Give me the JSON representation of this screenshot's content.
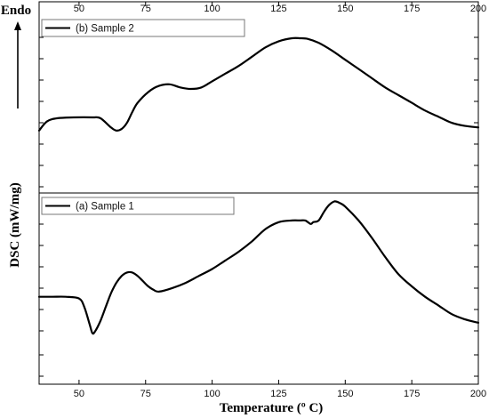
{
  "chart_data": {
    "type": "line",
    "xlabel": "Temperature (º C)",
    "ylabel": "DSC (mW/mg)",
    "endo_label": "Endo",
    "xlim": [
      35,
      200
    ],
    "x_ticks": [
      50,
      75,
      100,
      125,
      150,
      175,
      200
    ],
    "panels": [
      {
        "id": "b",
        "legend": "(b) Sample 2",
        "ylim": [
          0,
          100
        ],
        "series": [
          {
            "x": [
              35,
              38,
              42,
              48,
              55,
              58,
              62,
              64,
              66,
              68,
              70,
              72,
              76,
              80,
              84,
              88,
              92,
              96,
              100,
              105,
              110,
              115,
              120,
              125,
              130,
              133,
              136,
              140,
              145,
              150,
              155,
              160,
              165,
              170,
              175,
              180,
              185,
              190,
              195,
              200
            ],
            "y": [
              25,
              31,
              33,
              33.5,
              33.5,
              33,
              27,
              25,
              26,
              30,
              37,
              43,
              50,
              54,
              55,
              53,
              52,
              53,
              57,
              62,
              67,
              73,
              79,
              83,
              85,
              85,
              84.5,
              82,
              77,
              71,
              65,
              59,
              53,
              48,
              43,
              38,
              34,
              30,
              28,
              27
            ]
          }
        ]
      },
      {
        "id": "a",
        "legend": "(a) Sample 1",
        "ylim": [
          0,
          100
        ],
        "series": [
          {
            "x": [
              35,
              40,
              45,
              50,
              52,
              54,
              55,
              56,
              58,
              60,
              62,
              64,
              66,
              68,
              70,
              72,
              74,
              76,
              78,
              80,
              85,
              90,
              95,
              100,
              105,
              110,
              115,
              120,
              125,
              130,
              133,
              135,
              137,
              138,
              140,
              142,
              144,
              146,
              148,
              150,
              155,
              160,
              165,
              170,
              175,
              180,
              185,
              190,
              195,
              200
            ],
            "y": [
              34,
              34,
              34,
              33,
              28,
              18,
              13,
              14,
              20,
              28,
              36,
              42,
              46,
              48,
              48,
              46,
              43,
              40,
              38,
              37,
              39,
              42,
              46,
              50,
              55,
              60,
              66,
              73,
              77,
              78,
              78,
              78,
              76,
              77,
              78,
              83,
              87,
              89,
              88,
              86,
              78,
              68,
              57,
              47,
              40,
              34,
              29,
              24,
              21,
              19
            ]
          }
        ]
      }
    ]
  }
}
